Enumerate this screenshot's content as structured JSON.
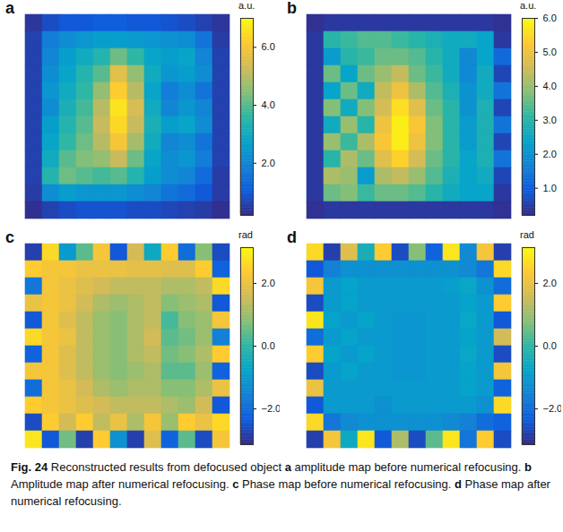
{
  "chart_data": [
    {
      "type": "heatmap",
      "label": "a",
      "tick_labels": false,
      "colorbar": {
        "label": "a.u.",
        "range": [
          0.2,
          7.0
        ],
        "ticks": [
          2,
          4,
          6
        ]
      },
      "cells": [
        [
          0.4,
          0.8,
          1.0,
          1.0,
          1.1,
          1.1,
          1.0,
          1.0,
          0.9,
          0.8,
          0.6,
          0.4
        ],
        [
          0.6,
          1.8,
          2.2,
          2.4,
          2.6,
          2.6,
          2.5,
          2.4,
          2.3,
          2.2,
          1.6,
          0.5
        ],
        [
          0.6,
          2.0,
          2.6,
          3.0,
          3.4,
          4.2,
          3.6,
          2.8,
          2.6,
          2.8,
          2.0,
          0.6
        ],
        [
          0.6,
          2.2,
          2.8,
          3.4,
          4.0,
          5.6,
          4.6,
          3.0,
          2.4,
          2.6,
          2.2,
          0.6
        ],
        [
          0.6,
          2.4,
          3.0,
          3.6,
          4.6,
          6.2,
          5.0,
          2.8,
          1.8,
          2.2,
          1.6,
          0.6
        ],
        [
          0.6,
          2.2,
          3.2,
          3.8,
          5.0,
          6.6,
          5.4,
          3.0,
          2.0,
          2.4,
          2.0,
          0.6
        ],
        [
          0.6,
          2.6,
          3.4,
          4.0,
          5.2,
          6.4,
          5.2,
          3.2,
          2.6,
          2.8,
          2.2,
          0.6
        ],
        [
          0.6,
          2.8,
          3.6,
          4.2,
          5.0,
          6.0,
          4.8,
          3.0,
          2.0,
          2.2,
          1.6,
          0.6
        ],
        [
          0.6,
          3.0,
          4.0,
          4.4,
          4.6,
          5.2,
          4.2,
          2.8,
          2.2,
          2.4,
          1.8,
          0.6
        ],
        [
          0.6,
          3.4,
          4.2,
          4.0,
          3.8,
          4.0,
          3.4,
          2.6,
          2.2,
          2.0,
          1.4,
          0.5
        ],
        [
          0.5,
          2.2,
          2.6,
          2.4,
          2.4,
          2.4,
          2.2,
          2.0,
          1.6,
          1.4,
          1.0,
          0.5
        ],
        [
          0.3,
          0.6,
          0.8,
          0.9,
          0.9,
          0.9,
          0.8,
          0.8,
          0.7,
          0.6,
          0.5,
          0.3
        ]
      ]
    },
    {
      "type": "heatmap",
      "label": "b",
      "tick_labels": false,
      "colorbar": {
        "label": "a.u.",
        "range": [
          0.2,
          6.0
        ],
        "ticks": [
          1,
          2,
          3,
          4,
          5,
          6
        ]
      },
      "cells": [
        [
          0.3,
          0.4,
          0.4,
          0.4,
          0.4,
          0.4,
          0.4,
          0.4,
          0.4,
          0.4,
          0.4,
          0.3
        ],
        [
          0.4,
          3.0,
          3.2,
          3.4,
          3.4,
          3.2,
          3.0,
          2.8,
          2.6,
          2.6,
          2.4,
          0.4
        ],
        [
          0.4,
          2.2,
          3.0,
          3.2,
          3.6,
          3.6,
          3.4,
          3.0,
          2.6,
          1.8,
          2.4,
          1.2
        ],
        [
          0.4,
          3.6,
          2.4,
          3.6,
          4.0,
          4.4,
          3.6,
          3.2,
          2.6,
          1.8,
          2.6,
          0.6
        ],
        [
          0.4,
          2.4,
          3.6,
          2.6,
          4.4,
          5.0,
          4.2,
          3.4,
          2.8,
          2.0,
          2.6,
          1.4
        ],
        [
          0.4,
          3.8,
          2.6,
          3.8,
          4.6,
          5.6,
          4.8,
          3.6,
          3.0,
          2.0,
          2.8,
          0.6
        ],
        [
          0.4,
          2.6,
          4.0,
          3.0,
          5.0,
          5.8,
          5.2,
          3.8,
          3.0,
          2.2,
          2.8,
          1.4
        ],
        [
          0.4,
          4.0,
          3.2,
          4.2,
          5.2,
          5.8,
          5.0,
          3.8,
          3.0,
          2.2,
          2.8,
          0.6
        ],
        [
          0.4,
          3.0,
          4.2,
          3.6,
          4.8,
          5.4,
          4.6,
          3.6,
          3.0,
          2.4,
          2.8,
          1.4
        ],
        [
          0.4,
          4.2,
          4.0,
          2.2,
          4.2,
          4.4,
          4.0,
          3.4,
          2.8,
          2.4,
          2.6,
          0.6
        ],
        [
          0.4,
          3.6,
          3.8,
          3.2,
          3.6,
          3.6,
          3.4,
          3.0,
          2.6,
          2.4,
          2.4,
          0.4
        ],
        [
          0.3,
          0.4,
          0.4,
          0.4,
          0.4,
          0.4,
          0.4,
          0.4,
          0.4,
          0.4,
          0.4,
          0.3
        ]
      ]
    },
    {
      "type": "heatmap",
      "label": "c",
      "tick_labels": false,
      "colorbar": {
        "label": "rad",
        "range": [
          -3.14,
          3.14
        ],
        "ticks": [
          -2,
          0,
          2
        ]
      },
      "cells": [
        [
          -2.8,
          2.6,
          -1.0,
          0.4,
          2.2,
          -2.4,
          1.6,
          -0.6,
          2.4,
          -2.0,
          0.8,
          -2.6
        ],
        [
          2.4,
          2.2,
          2.2,
          2.0,
          2.0,
          2.0,
          1.9,
          1.9,
          1.8,
          1.8,
          2.4,
          -2.2
        ],
        [
          -1.8,
          2.2,
          2.0,
          1.8,
          1.6,
          1.4,
          1.4,
          1.4,
          1.2,
          1.2,
          1.4,
          2.6
        ],
        [
          2.0,
          2.2,
          2.0,
          1.6,
          1.2,
          1.0,
          1.2,
          1.4,
          0.8,
          1.0,
          1.2,
          -2.4
        ],
        [
          -2.4,
          2.2,
          1.8,
          1.4,
          1.0,
          0.8,
          1.2,
          1.4,
          0.2,
          0.8,
          1.0,
          2.2
        ],
        [
          2.6,
          2.2,
          2.0,
          1.4,
          1.0,
          0.8,
          1.2,
          1.6,
          0.4,
          0.6,
          1.0,
          -1.6
        ],
        [
          -2.2,
          2.2,
          1.8,
          1.4,
          1.0,
          0.8,
          1.2,
          1.4,
          0.6,
          0.8,
          1.2,
          2.4
        ],
        [
          2.2,
          2.2,
          1.8,
          1.4,
          1.0,
          0.8,
          1.0,
          1.2,
          0.4,
          0.4,
          1.0,
          -2.2
        ],
        [
          -2.0,
          2.2,
          2.0,
          1.6,
          1.2,
          1.0,
          1.2,
          1.2,
          0.8,
          0.8,
          1.2,
          2.0
        ],
        [
          2.4,
          2.2,
          2.0,
          1.8,
          1.6,
          1.4,
          1.4,
          1.4,
          1.2,
          1.0,
          1.6,
          -2.4
        ],
        [
          -2.6,
          2.4,
          1.6,
          2.4,
          1.4,
          2.0,
          1.2,
          2.2,
          1.0,
          2.4,
          2.0,
          2.6
        ],
        [
          2.8,
          -2.4,
          0.6,
          -2.8,
          2.4,
          -1.2,
          -2.8,
          1.8,
          -2.2,
          0.4,
          -2.6,
          2.2
        ]
      ]
    },
    {
      "type": "heatmap",
      "label": "d",
      "tick_labels": false,
      "colorbar": {
        "label": "rad",
        "range": [
          -3.14,
          3.14
        ],
        "ticks": [
          -2,
          0,
          2
        ]
      },
      "cells": [
        [
          2.6,
          -2.8,
          1.8,
          -0.4,
          2.4,
          -2.6,
          0.8,
          -2.2,
          2.8,
          -1.4,
          2.2,
          -2.8
        ],
        [
          -2.4,
          -1.6,
          -1.2,
          -1.2,
          -1.2,
          -1.2,
          -1.2,
          -1.2,
          -1.2,
          -1.4,
          -1.8,
          2.6
        ],
        [
          2.2,
          -1.0,
          -0.8,
          -1.0,
          -1.0,
          -1.0,
          -1.0,
          -1.0,
          -0.9,
          -0.7,
          -1.2,
          -2.0
        ],
        [
          -2.6,
          -1.0,
          -0.8,
          -1.0,
          -1.0,
          -1.0,
          -1.0,
          -1.0,
          -1.0,
          -0.8,
          -1.0,
          2.4
        ],
        [
          2.8,
          -0.8,
          -1.0,
          -0.8,
          -1.0,
          -1.1,
          -1.1,
          -1.0,
          -1.0,
          -0.7,
          -1.0,
          -2.4
        ],
        [
          -2.0,
          -1.0,
          -0.8,
          -1.0,
          -1.0,
          -1.1,
          -1.1,
          -1.0,
          -1.0,
          -0.8,
          -1.0,
          1.6
        ],
        [
          2.4,
          -0.8,
          -1.0,
          -0.8,
          -1.0,
          -1.1,
          -1.1,
          -1.0,
          -1.0,
          -0.7,
          -1.0,
          -2.6
        ],
        [
          -2.6,
          -1.0,
          -0.8,
          -1.0,
          -1.0,
          -1.1,
          -1.1,
          -1.0,
          -1.0,
          -0.8,
          -1.0,
          2.2
        ],
        [
          2.0,
          -1.0,
          -1.0,
          -1.0,
          -1.0,
          -1.0,
          -1.0,
          -1.0,
          -1.0,
          -0.8,
          -1.0,
          -2.2
        ],
        [
          -2.4,
          -1.0,
          -1.0,
          -1.0,
          -1.2,
          -1.0,
          -1.0,
          -1.0,
          -1.0,
          -1.0,
          -1.2,
          2.6
        ],
        [
          2.6,
          -1.8,
          -1.4,
          -1.2,
          -1.2,
          -1.2,
          -1.2,
          -1.2,
          -1.4,
          -1.6,
          -2.0,
          -2.2
        ],
        [
          -2.8,
          2.2,
          -0.6,
          2.8,
          -2.4,
          1.2,
          -2.6,
          0.4,
          2.8,
          -1.8,
          2.4,
          -2.6
        ]
      ]
    }
  ],
  "caption": {
    "figure": "Fig. 24",
    "text": "Reconstructed results from defocused object",
    "parts": [
      {
        "label": "a",
        "text": "amplitude map before numerical refocusing."
      },
      {
        "label": "b",
        "text": "Amplitude map after numerical refocusing."
      },
      {
        "label": "c",
        "text": "Phase map before numerical refocusing."
      },
      {
        "label": "d",
        "text": "Phase map after numerical refocusing."
      }
    ]
  }
}
